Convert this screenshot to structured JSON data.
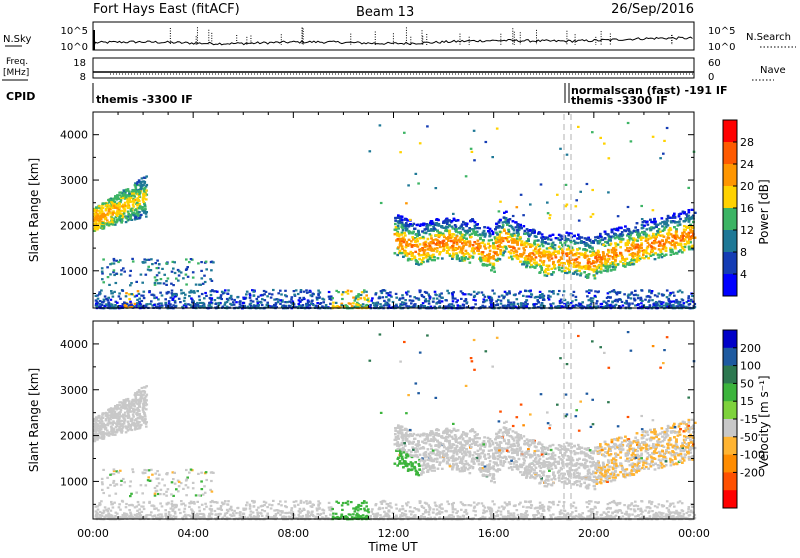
{
  "header": {
    "station": "Fort Hays East (fitACF)",
    "beam": "Beam 13",
    "date": "26/Sep/2016"
  },
  "strips": {
    "nsky_label": "N.Sky",
    "nsearch_label": "N.Search",
    "nsky_ticks": [
      "10^5",
      "10^0"
    ],
    "nsearch_ticks": [
      "10^5",
      "10^0"
    ],
    "freq_label_1": "Freq.",
    "freq_label_2": "[MHz]",
    "freq_ticks": [
      "18",
      "8"
    ],
    "nave_label": "Nave",
    "nave_ticks": [
      "60",
      "0"
    ],
    "cpid_label": "CPID",
    "cpid_text_1": "themis -3300 IF",
    "cpid_text_2": "normalscan (fast) -191 IF",
    "cpid_text_3": "themis -3300 IF"
  },
  "chart_data": [
    {
      "type": "heatmap",
      "name": "power-panel",
      "ylabel": "Slant Range [km]",
      "yticks": [
        1000,
        2000,
        3000,
        4000
      ],
      "ylim": [
        180,
        4500
      ],
      "xlim": [
        0,
        24
      ],
      "colorbar": {
        "label": "Power [dB]",
        "ticks": [
          "28",
          "24",
          "20",
          "16",
          "12",
          "8",
          "4"
        ],
        "colors": [
          "#ff0000",
          "#ff5a00",
          "#ff9600",
          "#ffd200",
          "#3cb464",
          "#1e7896",
          "#143cb4",
          "#0000ff"
        ]
      }
    },
    {
      "type": "heatmap",
      "name": "velocity-panel",
      "ylabel": "Slant Range [km]",
      "yticks": [
        1000,
        2000,
        3000,
        4000
      ],
      "ylim": [
        180,
        4500
      ],
      "xlim": [
        0,
        24
      ],
      "xlabel": "Time UT",
      "xticks": [
        "00:00",
        "04:00",
        "08:00",
        "12:00",
        "16:00",
        "20:00",
        "00:00"
      ],
      "colorbar": {
        "label": "Velocity [m s⁻¹]",
        "ticks": [
          "200",
          "100",
          "50",
          "15",
          "-15",
          "-50",
          "-100",
          "-200"
        ],
        "colors": [
          "#0000c8",
          "#1e5aa0",
          "#2d7850",
          "#3cb43c",
          "#7ed23c",
          "#c8c8c8",
          "#ffb432",
          "#ff8c00",
          "#ff5000",
          "#ff0000"
        ]
      }
    }
  ]
}
